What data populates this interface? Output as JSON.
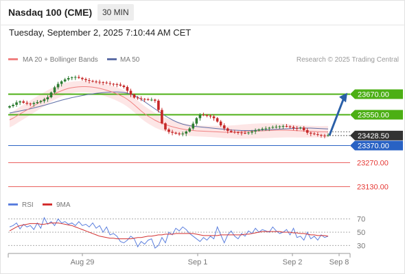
{
  "header": {
    "title": "Nasdaq 100 (CME)",
    "interval": "30 MIN",
    "datetime": "Tuesday, September 2, 2025 7:10:44 AM CET"
  },
  "colors": {
    "ma20": "#f08080",
    "bollinger_fill": "#fde2e2",
    "ma50": "#5d6ea6",
    "resistance": "#4caf14",
    "support": "#2962c4",
    "support_red": "#e53935",
    "candle_up": "#2e7d32",
    "candle_down": "#c62828",
    "rsi": "#5b7fde",
    "rsi_ma": "#d32f2f",
    "arrow": "#2a5fa8"
  },
  "chart_data": [
    {
      "type": "candlestick",
      "legend": [
        "MA 20 + Bollinger Bands",
        "MA 50"
      ],
      "watermark": "Research © 2025 Trading Central",
      "ylim": [
        23080,
        23840
      ],
      "x_ticks": [
        "Aug 29",
        "Sep 1",
        "Sep 2",
        "Sep 8"
      ],
      "levels": [
        {
          "label": "23670.00",
          "value": 23670,
          "kind": "resistance"
        },
        {
          "label": "23550.00",
          "value": 23550,
          "kind": "resistance"
        },
        {
          "label": "23428.50",
          "value": 23428.5,
          "kind": "last"
        },
        {
          "label": "23370.00",
          "value": 23370,
          "kind": "support"
        },
        {
          "label": "23270.00",
          "value": 23270,
          "kind": "support_red"
        },
        {
          "label": "23130.00",
          "value": 23130,
          "kind": "support_red"
        }
      ],
      "close": [
        23600,
        23608,
        23622,
        23628,
        23620,
        23615,
        23612,
        23618,
        23624,
        23630,
        23640,
        23652,
        23680,
        23710,
        23730,
        23745,
        23756,
        23764,
        23768,
        23770,
        23765,
        23758,
        23752,
        23748,
        23744,
        23742,
        23740,
        23738,
        23734,
        23730,
        23728,
        23726,
        23720,
        23712,
        23690,
        23668,
        23650,
        23646,
        23642,
        23640,
        23638,
        23638,
        23632,
        23578,
        23500,
        23464,
        23450,
        23445,
        23440,
        23436,
        23440,
        23452,
        23470,
        23498,
        23530,
        23550,
        23548,
        23544,
        23540,
        23530,
        23510,
        23488,
        23470,
        23456,
        23450,
        23448,
        23446,
        23444,
        23442,
        23446,
        23452,
        23458,
        23464,
        23468,
        23470,
        23474,
        23478,
        23480,
        23482,
        23484,
        23482,
        23478,
        23472,
        23470,
        23475,
        23460,
        23445,
        23440,
        23436,
        23432,
        23429,
        23428,
        23430
      ],
      "ma20": [
        23520,
        23530,
        23542,
        23555,
        23566,
        23578,
        23590,
        23602,
        23614,
        23626,
        23638,
        23650,
        23662,
        23672,
        23682,
        23690,
        23698,
        23704,
        23708,
        23711,
        23713,
        23714,
        23714,
        23713,
        23711,
        23708,
        23704,
        23699,
        23693,
        23687,
        23680,
        23672,
        23663,
        23653,
        23640,
        23625,
        23608,
        23590,
        23572,
        23556,
        23542,
        23530,
        23518,
        23508,
        23500,
        23492,
        23486,
        23480,
        23475,
        23470,
        23466,
        23463,
        23460,
        23458,
        23456,
        23455,
        23454,
        23453,
        23452,
        23451,
        23450,
        23449,
        23448,
        23448,
        23448,
        23448,
        23449,
        23450,
        23451,
        23452,
        23453,
        23454,
        23455,
        23456,
        23457,
        23458,
        23459,
        23460,
        23460,
        23460,
        23460,
        23459,
        23458,
        23457,
        23456,
        23455,
        23454,
        23453,
        23452,
        23451,
        23450,
        23450,
        23449
      ],
      "ma50": [
        23560,
        23564,
        23568,
        23572,
        23576,
        23580,
        23585,
        23590,
        23595,
        23600,
        23605,
        23611,
        23617,
        23623,
        23629,
        23635,
        23640,
        23645,
        23650,
        23654,
        23658,
        23662,
        23666,
        23669,
        23672,
        23675,
        23677,
        23679,
        23681,
        23682,
        23683,
        23683,
        23682,
        23680,
        23676,
        23670,
        23662,
        23652,
        23640,
        23626,
        23612,
        23598,
        23584,
        23570,
        23556,
        23543,
        23531,
        23520,
        23510,
        23502,
        23495,
        23490,
        23486,
        23483,
        23481,
        23479,
        23477,
        23475,
        23473,
        23471,
        23469,
        23467,
        23465,
        23463,
        23461,
        23460,
        23459,
        23458,
        23458,
        23458,
        23458,
        23459,
        23460,
        23461,
        23462,
        23463,
        23464,
        23465,
        23466,
        23467,
        23468,
        23469,
        23470,
        23471,
        23472,
        23472,
        23472,
        23472,
        23471,
        23470,
        23469,
        23468,
        23467
      ]
    },
    {
      "type": "line",
      "legend": [
        "RSI",
        "9MA"
      ],
      "ylim": [
        20,
        80
      ],
      "y_ticks": [
        70,
        50,
        30
      ],
      "rsi": [
        58,
        60,
        64,
        55,
        62,
        58,
        60,
        54,
        64,
        56,
        72,
        62,
        66,
        60,
        70,
        64,
        66,
        62,
        64,
        60,
        66,
        60,
        62,
        58,
        64,
        56,
        60,
        50,
        58,
        46,
        48,
        44,
        36,
        34,
        38,
        44,
        40,
        28,
        36,
        32,
        38,
        40,
        26,
        30,
        42,
        34,
        50,
        46,
        56,
        52,
        58,
        54,
        48,
        44,
        40,
        36,
        42,
        38,
        44,
        40,
        58,
        46,
        34,
        46,
        52,
        44,
        40,
        48,
        44,
        52,
        48,
        56,
        50,
        54,
        52,
        50,
        58,
        52,
        48,
        50,
        54,
        46,
        56,
        42,
        44,
        38,
        50,
        40,
        44,
        38,
        46,
        42,
        44
      ],
      "ma9": [
        52,
        55,
        58,
        60,
        61,
        62,
        63,
        63,
        63,
        62,
        62,
        63,
        64,
        64,
        64,
        63,
        62,
        61,
        60,
        58,
        56,
        54,
        52,
        50,
        48,
        46,
        44,
        43,
        42,
        41,
        41,
        40,
        40,
        40,
        40,
        40,
        41,
        42,
        42,
        43,
        44,
        44,
        45,
        46,
        46,
        47,
        47,
        47,
        48,
        48,
        48,
        48,
        48,
        48,
        47,
        46,
        45,
        45,
        45,
        45,
        45,
        46,
        46,
        46,
        46,
        46,
        46,
        46,
        47,
        47,
        48,
        49,
        50,
        51,
        51,
        51,
        51,
        51,
        51,
        50,
        50,
        50,
        49,
        49,
        48,
        48,
        47,
        46,
        46,
        45,
        45,
        45,
        44
      ]
    }
  ]
}
